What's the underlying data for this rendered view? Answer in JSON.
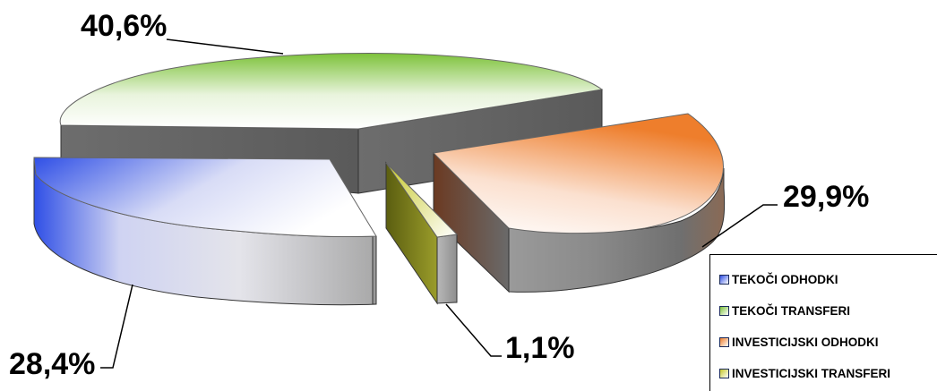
{
  "chart_data": {
    "type": "pie",
    "variant": "3d-exploded",
    "title": "",
    "slices": [
      {
        "name": "TEKOČI ODHODKI",
        "value": 28.4,
        "label": "28,4%",
        "color": "#2f4fe6"
      },
      {
        "name": "TEKOČI TRANSFERI",
        "value": 40.6,
        "label": "40,6%",
        "color": "#7dc23a"
      },
      {
        "name": "INVESTICIJSKI ODHODKI",
        "value": 29.9,
        "label": "29,9%",
        "color": "#ee7e2c"
      },
      {
        "name": "INVESTICIJSKI TRANSFERI",
        "value": 1.1,
        "label": "1,1%",
        "color": "#c6c82a"
      }
    ],
    "legend_position": "bottom-right"
  }
}
